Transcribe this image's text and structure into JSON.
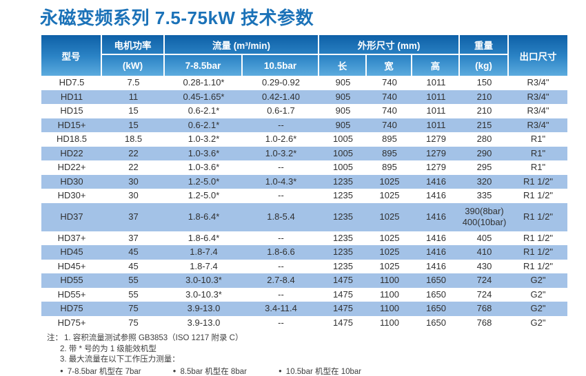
{
  "title": "永磁变频系列 7.5-75kW 技术参数",
  "colors": {
    "title_blue": "#1b72b8",
    "header_gradient_top": "#0e60a7",
    "header_gradient_bottom": "#5cabde",
    "stripe_blue": "#a3c2e7",
    "header_text": "#ffffff"
  },
  "table": {
    "header": {
      "model": "型号",
      "motor_power": "电机功率",
      "motor_power_unit": "(kW)",
      "flow_group": "流量 (m³/min)",
      "flow_7_85bar": "7-8.5bar",
      "flow_105bar": "10.5bar",
      "dimensions_group": "外形尺寸 (mm)",
      "length": "长",
      "width": "宽",
      "height": "高",
      "weight": "重量",
      "weight_unit": "(kg)",
      "outlet_size": "出口尺寸"
    },
    "rows": [
      {
        "model": "HD7.5",
        "power": "7.5",
        "flow1": "0.28-1.10*",
        "flow2": "0.29-0.92",
        "length": "905",
        "width": "740",
        "height": "1011",
        "weight": "150",
        "outlet": "R3/4\""
      },
      {
        "model": "HD11",
        "power": "11",
        "flow1": "0.45-1.65*",
        "flow2": "0.42-1.40",
        "length": "905",
        "width": "740",
        "height": "1011",
        "weight": "210",
        "outlet": "R3/4\""
      },
      {
        "model": "HD15",
        "power": "15",
        "flow1": "0.6-2.1*",
        "flow2": "0.6-1.7",
        "length": "905",
        "width": "740",
        "height": "1011",
        "weight": "210",
        "outlet": "R3/4\""
      },
      {
        "model": "HD15+",
        "power": "15",
        "flow1": "0.6-2.1*",
        "flow2": "--",
        "length": "905",
        "width": "740",
        "height": "1011",
        "weight": "215",
        "outlet": "R3/4\""
      },
      {
        "model": "HD18.5",
        "power": "18.5",
        "flow1": "1.0-3.2*",
        "flow2": "1.0-2.6*",
        "length": "1005",
        "width": "895",
        "height": "1279",
        "weight": "280",
        "outlet": "R1\""
      },
      {
        "model": "HD22",
        "power": "22",
        "flow1": "1.0-3.6*",
        "flow2": "1.0-3.2*",
        "length": "1005",
        "width": "895",
        "height": "1279",
        "weight": "290",
        "outlet": "R1\""
      },
      {
        "model": "HD22+",
        "power": "22",
        "flow1": "1.0-3.6*",
        "flow2": "--",
        "length": "1005",
        "width": "895",
        "height": "1279",
        "weight": "295",
        "outlet": "R1\""
      },
      {
        "model": "HD30",
        "power": "30",
        "flow1": "1.2-5.0*",
        "flow2": "1.0-4.3*",
        "length": "1235",
        "width": "1025",
        "height": "1416",
        "weight": "320",
        "outlet": "R1 1/2\""
      },
      {
        "model": "HD30+",
        "power": "30",
        "flow1": "1.2-5.0*",
        "flow2": "--",
        "length": "1235",
        "width": "1025",
        "height": "1416",
        "weight": "335",
        "outlet": "R1 1/2\""
      },
      {
        "model": "HD37",
        "power": "37",
        "flow1": "1.8-6.4*",
        "flow2": "1.8-5.4",
        "length": "1235",
        "width": "1025",
        "height": "1416",
        "weight": "390(8bar)\n400(10bar)",
        "outlet": "R1 1/2\""
      },
      {
        "model": "HD37+",
        "power": "37",
        "flow1": "1.8-6.4*",
        "flow2": "--",
        "length": "1235",
        "width": "1025",
        "height": "1416",
        "weight": "405",
        "outlet": "R1 1/2\""
      },
      {
        "model": "HD45",
        "power": "45",
        "flow1": "1.8-7.4",
        "flow2": "1.8-6.6",
        "length": "1235",
        "width": "1025",
        "height": "1416",
        "weight": "410",
        "outlet": "R1 1/2\""
      },
      {
        "model": "HD45+",
        "power": "45",
        "flow1": "1.8-7.4",
        "flow2": "--",
        "length": "1235",
        "width": "1025",
        "height": "1416",
        "weight": "430",
        "outlet": "R1 1/2\""
      },
      {
        "model": "HD55",
        "power": "55",
        "flow1": "3.0-10.3*",
        "flow2": "2.7-8.4",
        "length": "1475",
        "width": "1100",
        "height": "1650",
        "weight": "724",
        "outlet": "G2\""
      },
      {
        "model": "HD55+",
        "power": "55",
        "flow1": "3.0-10.3*",
        "flow2": "--",
        "length": "1475",
        "width": "1100",
        "height": "1650",
        "weight": "724",
        "outlet": "G2\""
      },
      {
        "model": "HD75",
        "power": "75",
        "flow1": "3.9-13.0",
        "flow2": "3.4-11.4",
        "length": "1475",
        "width": "1100",
        "height": "1650",
        "weight": "768",
        "outlet": "G2\""
      },
      {
        "model": "HD75+",
        "power": "75",
        "flow1": "3.9-13.0",
        "flow2": "--",
        "length": "1475",
        "width": "1100",
        "height": "1650",
        "weight": "768",
        "outlet": "G2\""
      }
    ]
  },
  "notes": {
    "prefix": "注：",
    "bullet": "●",
    "items": [
      "1. 容积流量测试参照 GB3853（ISO 1217 附录 C）",
      "2. 带 * 号的为 1 级能效机型",
      "3. 最大流量在以下工作压力测量："
    ],
    "bullets": [
      "7-8.5bar 机型在 7bar",
      "8.5bar 机型在 8bar",
      "10.5bar 机型在 10bar"
    ]
  }
}
